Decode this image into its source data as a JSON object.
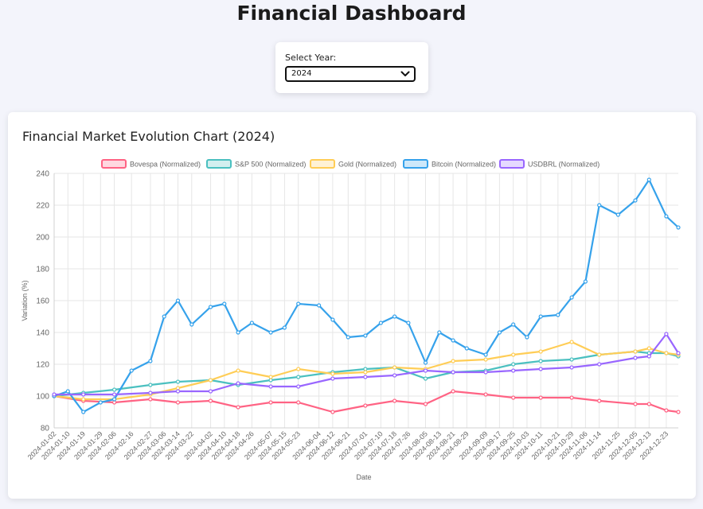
{
  "header": {
    "title": "Financial Dashboard"
  },
  "year_selector": {
    "label": "Select Year:",
    "selected": "2024"
  },
  "chart_card": {
    "title": "Financial Market Evolution Chart (2024)"
  },
  "colors": {
    "background": "#f3f4fb",
    "bovespa": "#ff6384",
    "sp500": "#4bc0c0",
    "gold": "#ffcd56",
    "bitcoin": "#36a2eb",
    "usdbrl": "#9966ff"
  },
  "chart_data": {
    "type": "line",
    "xlabel": "Date",
    "ylabel": "Variation (%)",
    "ylim": [
      80,
      240
    ],
    "yticks": [
      80,
      100,
      120,
      140,
      160,
      180,
      200,
      220,
      240
    ],
    "grid": true,
    "legend_placement": "top",
    "x_ticks": [
      "2024-01-02",
      "2024-01-10",
      "2024-01-19",
      "2024-01-29",
      "2024-02-06",
      "2024-02-16",
      "2024-02-27",
      "2024-03-06",
      "2024-03-14",
      "2024-03-22",
      "2024-04-02",
      "2024-04-10",
      "2024-04-18",
      "2024-04-26",
      "2024-05-07",
      "2024-05-15",
      "2024-05-23",
      "2024-06-04",
      "2024-06-12",
      "2024-06-21",
      "2024-07-01",
      "2024-07-10",
      "2024-07-18",
      "2024-07-26",
      "2024-08-05",
      "2024-08-13",
      "2024-08-21",
      "2024-08-29",
      "2024-09-09",
      "2024-09-17",
      "2024-09-25",
      "2024-10-03",
      "2024-10-11",
      "2024-10-21",
      "2024-10-29",
      "2024-11-06",
      "2024-11-14",
      "2024-11-25",
      "2024-12-05",
      "2024-12-13",
      "2024-12-23"
    ],
    "series": [
      {
        "name": "Bovespa (Normalized)",
        "color": "#ff6384",
        "x": [
          "2024-01-02",
          "2024-01-19",
          "2024-02-06",
          "2024-02-27",
          "2024-03-14",
          "2024-04-02",
          "2024-04-18",
          "2024-05-07",
          "2024-05-23",
          "2024-06-12",
          "2024-07-01",
          "2024-07-18",
          "2024-08-05",
          "2024-08-21",
          "2024-09-09",
          "2024-09-25",
          "2024-10-11",
          "2024-10-29",
          "2024-11-14",
          "2024-12-05",
          "2024-12-13",
          "2024-12-23",
          "2024-12-30"
        ],
        "values": [
          100,
          97,
          96,
          98,
          96,
          97,
          93,
          96,
          96,
          90,
          94,
          97,
          95,
          103,
          101,
          99,
          99,
          99,
          97,
          95,
          95,
          91,
          90
        ]
      },
      {
        "name": "S&P 500 (Normalized)",
        "color": "#4bc0c0",
        "x": [
          "2024-01-02",
          "2024-01-19",
          "2024-02-06",
          "2024-02-27",
          "2024-03-14",
          "2024-04-02",
          "2024-04-18",
          "2024-05-07",
          "2024-05-23",
          "2024-06-12",
          "2024-07-01",
          "2024-07-18",
          "2024-08-05",
          "2024-08-21",
          "2024-09-09",
          "2024-09-25",
          "2024-10-11",
          "2024-10-29",
          "2024-11-14",
          "2024-12-05",
          "2024-12-13",
          "2024-12-23",
          "2024-12-30"
        ],
        "values": [
          100,
          102,
          104,
          107,
          109,
          110,
          107,
          110,
          112,
          115,
          117,
          118,
          111,
          115,
          116,
          120,
          122,
          123,
          126,
          128,
          127,
          127,
          125
        ]
      },
      {
        "name": "Gold (Normalized)",
        "color": "#ffcd56",
        "x": [
          "2024-01-02",
          "2024-01-19",
          "2024-02-06",
          "2024-02-27",
          "2024-03-14",
          "2024-04-02",
          "2024-04-18",
          "2024-05-07",
          "2024-05-23",
          "2024-06-12",
          "2024-07-01",
          "2024-07-18",
          "2024-08-05",
          "2024-08-21",
          "2024-09-09",
          "2024-09-25",
          "2024-10-11",
          "2024-10-29",
          "2024-11-14",
          "2024-12-05",
          "2024-12-13",
          "2024-12-23",
          "2024-12-30"
        ],
        "values": [
          100,
          98,
          98,
          101,
          105,
          110,
          116,
          112,
          117,
          114,
          115,
          118,
          117,
          122,
          123,
          126,
          128,
          134,
          126,
          128,
          130,
          127,
          126
        ]
      },
      {
        "name": "Bitcoin (Normalized)",
        "color": "#36a2eb",
        "x": [
          "2024-01-02",
          "2024-01-10",
          "2024-01-19",
          "2024-01-29",
          "2024-02-06",
          "2024-02-16",
          "2024-02-27",
          "2024-03-06",
          "2024-03-14",
          "2024-03-22",
          "2024-04-02",
          "2024-04-10",
          "2024-04-18",
          "2024-04-26",
          "2024-05-07",
          "2024-05-15",
          "2024-05-23",
          "2024-06-04",
          "2024-06-12",
          "2024-06-21",
          "2024-07-01",
          "2024-07-10",
          "2024-07-18",
          "2024-07-26",
          "2024-08-05",
          "2024-08-13",
          "2024-08-21",
          "2024-08-29",
          "2024-09-09",
          "2024-09-17",
          "2024-09-25",
          "2024-10-03",
          "2024-10-11",
          "2024-10-21",
          "2024-10-29",
          "2024-11-06",
          "2024-11-14",
          "2024-11-25",
          "2024-12-05",
          "2024-12-13",
          "2024-12-23",
          "2024-12-30"
        ],
        "values": [
          100,
          103,
          90,
          96,
          98,
          116,
          122,
          150,
          160,
          145,
          156,
          158,
          140,
          146,
          140,
          143,
          158,
          157,
          148,
          137,
          138,
          146,
          150,
          146,
          121,
          140,
          135,
          130,
          126,
          140,
          145,
          137,
          150,
          151,
          162,
          172,
          220,
          214,
          223,
          236,
          213,
          206
        ]
      },
      {
        "name": "USDBRL (Normalized)",
        "color": "#9966ff",
        "x": [
          "2024-01-02",
          "2024-01-19",
          "2024-02-06",
          "2024-02-27",
          "2024-03-14",
          "2024-04-02",
          "2024-04-18",
          "2024-05-07",
          "2024-05-23",
          "2024-06-12",
          "2024-07-01",
          "2024-07-18",
          "2024-08-05",
          "2024-08-21",
          "2024-09-09",
          "2024-09-25",
          "2024-10-11",
          "2024-10-29",
          "2024-11-14",
          "2024-12-05",
          "2024-12-13",
          "2024-12-23",
          "2024-12-30"
        ],
        "values": [
          101,
          101,
          101,
          102,
          103,
          103,
          108,
          106,
          106,
          111,
          112,
          113,
          116,
          115,
          115,
          116,
          117,
          118,
          120,
          124,
          125,
          139,
          127
        ]
      }
    ]
  }
}
